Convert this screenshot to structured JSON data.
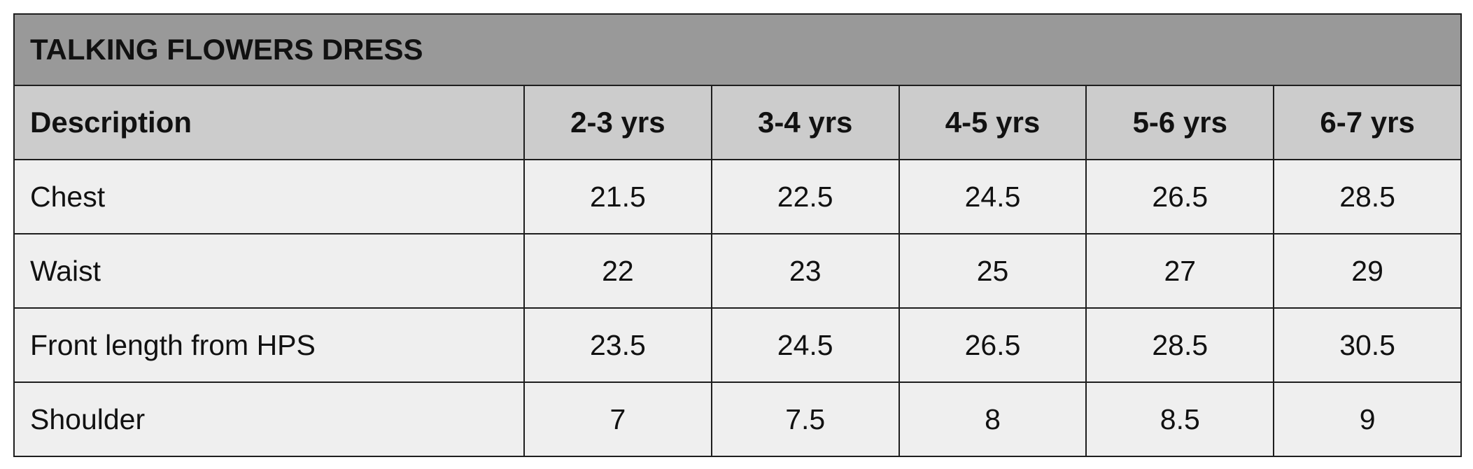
{
  "header": {
    "title": "TALKING FLOWERS DRESS"
  },
  "table": {
    "columns": [
      "Description",
      "2-3 yrs",
      "3-4 yrs",
      "4-5 yrs",
      "5-6 yrs",
      "6-7 yrs"
    ],
    "rows": [
      [
        "Chest",
        21.5,
        22.5,
        24.5,
        26.5,
        28.5
      ],
      [
        "Waist",
        22,
        23,
        25,
        27,
        29
      ],
      [
        "Front length from HPS",
        23.5,
        24.5,
        26.5,
        28.5,
        30.5
      ],
      [
        "Shoulder",
        7,
        7.5,
        8,
        8.5,
        9
      ]
    ]
  }
}
